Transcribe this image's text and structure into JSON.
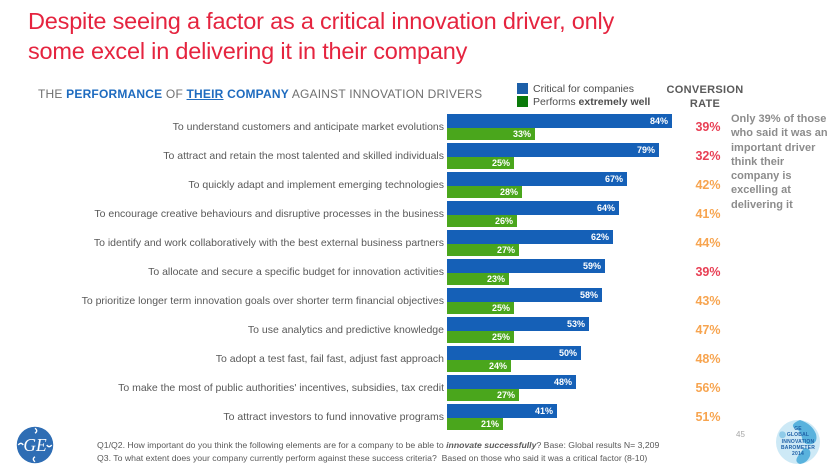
{
  "slide": {
    "title_line1": "Despite seeing a factor as a critical innovation driver, only",
    "title_line2": "some excel in delivering it in their company",
    "title_color": "#e5243f"
  },
  "subtitle": {
    "the": "THE",
    "performance": "PERFORMANCE",
    "of": "OF",
    "their": "THEIR",
    "company": "COMPANY",
    "rest": "AGAINST INNOVATION DRIVERS"
  },
  "legend": {
    "critical_label": "Critical for companies",
    "performs_prefix": "Performs ",
    "performs_bold": "extremely well",
    "critical_color": "#1c5fa8",
    "performs_color": "#0a7a0a"
  },
  "conversion_header": {
    "line1": "CONVERSION",
    "line2": "RATE"
  },
  "side_note": "Only 39% of those who said it was an important driver think their company is excelling at delivering it",
  "chart_data": {
    "type": "bar",
    "orientation": "horizontal",
    "title": "THE PERFORMANCE OF THEIR COMPANY AGAINST INNOVATION DRIVERS",
    "xlim": [
      0,
      100
    ],
    "legend_position": "top-right",
    "grid": false,
    "categories": [
      "To understand customers and anticipate market evolutions",
      "To attract and retain the most talented and skilled individuals",
      "To quickly adapt and implement emerging technologies",
      "To encourage creative behaviours and disruptive processes in the business",
      "To identify and work collaboratively with the best external business partners",
      "To allocate and secure a specific budget for innovation activities",
      "To prioritize longer term innovation goals over shorter term financial objectives",
      "To use analytics and predictive knowledge",
      "To adopt a test fast, fail fast, adjust fast approach",
      "To make the most of public authorities' incentives, subsidies, tax credit",
      "To attract investors to fund innovative programs"
    ],
    "series": [
      {
        "name": "Critical for companies",
        "color": "#1560b7",
        "values": [
          84,
          79,
          67,
          64,
          62,
          59,
          58,
          53,
          50,
          48,
          41
        ]
      },
      {
        "name": "Performs extremely well",
        "color": "#4aa61c",
        "values": [
          33,
          25,
          28,
          26,
          27,
          23,
          25,
          25,
          24,
          27,
          21
        ]
      }
    ],
    "conversion_rate": {
      "label": "CONVERSION RATE",
      "values": [
        39,
        32,
        42,
        41,
        44,
        39,
        43,
        47,
        48,
        56,
        51
      ],
      "red_indexes": [
        0,
        1,
        5
      ],
      "red_color": "#e84055",
      "orange_color": "#f7a44f"
    }
  },
  "footer": {
    "ge_monogram": "GE",
    "line1_pre": "Q1/Q2. How important do you think the following elements are for a company to be able to ",
    "line1_italic": "innovate successfully",
    "line1_post": "? Base: Global results N= 3,209",
    "line2": "Q3. To what extent does your company currently perform against these success criteria?  Based on those who said it was a critical factor (8-10)",
    "page_number": "45",
    "barometer_logo_lines": [
      "GE",
      "GLOBAL",
      "INNOVATION",
      "BAROMETER",
      "2014"
    ]
  }
}
